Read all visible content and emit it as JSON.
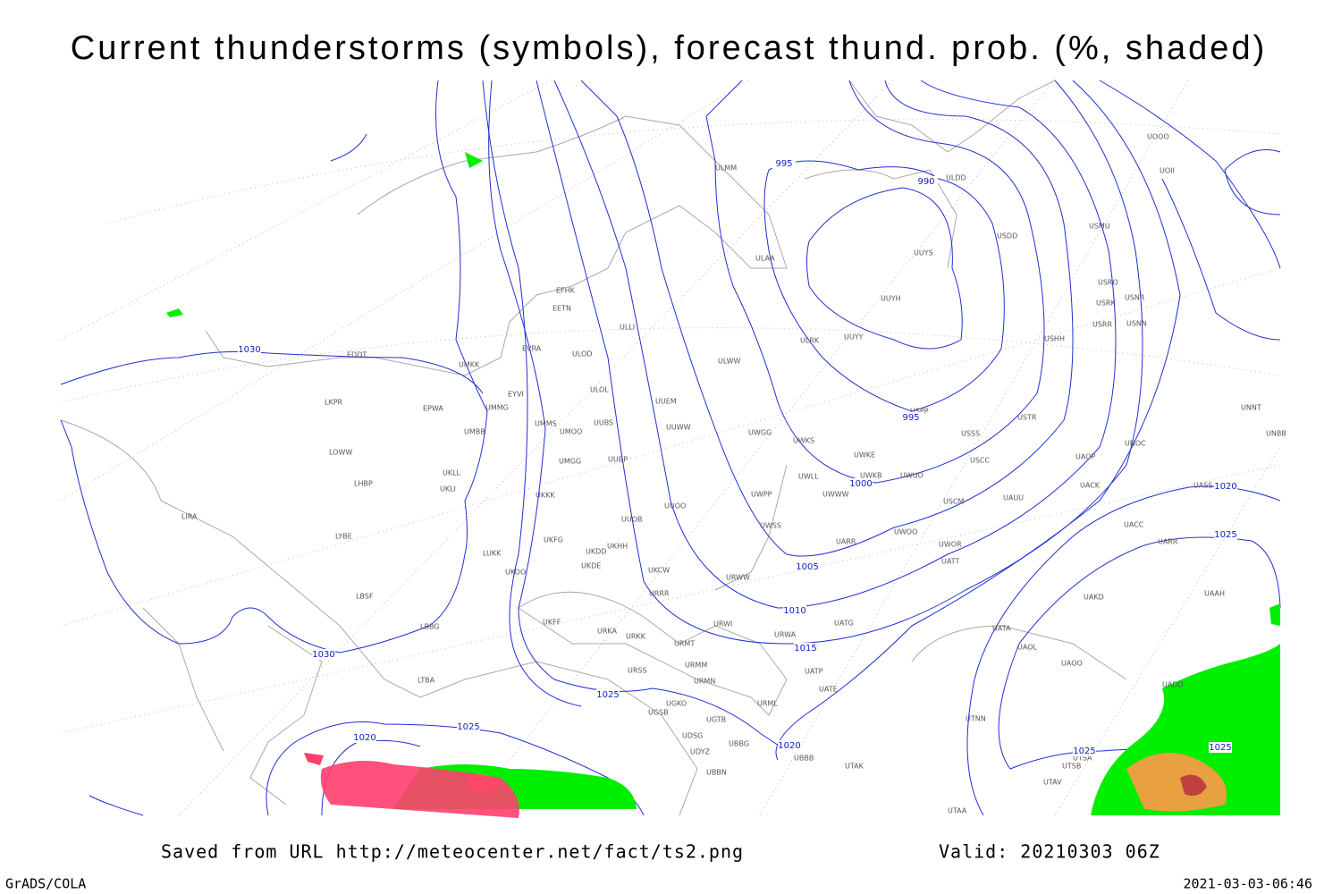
{
  "header": {
    "title": "Current thunderstorms (symbols), forecast thund. prob. (%, shaded)"
  },
  "contour_labels": [
    995,
    990,
    995,
    1000,
    1005,
    1010,
    1015,
    1020,
    1020,
    1025,
    1025,
    1025,
    1025,
    1025,
    1020,
    1030,
    1030
  ],
  "stations": [
    "ULMM",
    "ULDD",
    "ULAA",
    "USDD",
    "USMU",
    "UUYS",
    "USRO",
    "USRK",
    "USNR",
    "USRR",
    "USNN",
    "UUYH",
    "EFHK",
    "EETN",
    "ULLI",
    "ULRK",
    "UUYY",
    "USHH",
    "EVRA",
    "ULOD",
    "EDDT",
    "UMKK",
    "ULWW",
    "ULOL",
    "UUEM",
    "EYVI",
    "LKPR",
    "EPWA",
    "UMMG",
    "UMMS",
    "UMOO",
    "UUBS",
    "UUWW",
    "UWGG",
    "UWKS",
    "USPP",
    "USTR",
    "USSS",
    "UNOC",
    "UNNT",
    "UNBB",
    "UMBB",
    "LOWW",
    "UMGG",
    "UUBP",
    "UWKE",
    "UWKB",
    "UWUU",
    "USCC",
    "UAOP",
    "UKLL",
    "UKLI",
    "LHBP",
    "UWLL",
    "UWWW",
    "UWPP",
    "UACK",
    "UASS",
    "USCM",
    "UAUU",
    "UKKK",
    "UUOO",
    "LIRA",
    "UUOB",
    "UWSS",
    "UACC",
    "UARR",
    "UKHH",
    "UKFG",
    "UKDD",
    "UARR",
    "UWOO",
    "UWOR",
    "UATT",
    "LYBE",
    "LUKK",
    "UKOO",
    "UKDE",
    "UKCW",
    "URWW",
    "LBSF",
    "URRR",
    "UAKD",
    "UAAH",
    "UKFF",
    "URKA",
    "URKK",
    "URWI",
    "UATG",
    "LBBG",
    "URMT",
    "URWA",
    "UATA",
    "UAOL",
    "UAOO",
    "URSS",
    "URMM",
    "UATP",
    "UATE",
    "LTBA",
    "URMN",
    "UGKO",
    "URML",
    "UGSB",
    "UGTB",
    "UTNN",
    "UDSG",
    "UBBG",
    "UTAK",
    "UBBB",
    "UDYZ",
    "UBBN",
    "UTSB",
    "UTAV",
    "UTAA",
    "UTSA",
    "UADD",
    "UOOO",
    "UOII"
  ],
  "footer": {
    "source": "Saved from URL http://meteocenter.net/fact/ts2.png",
    "valid": "Valid: 20210303 06Z",
    "software": "GrADS/COLA",
    "timestamp": "2021-03-03-06:46"
  }
}
